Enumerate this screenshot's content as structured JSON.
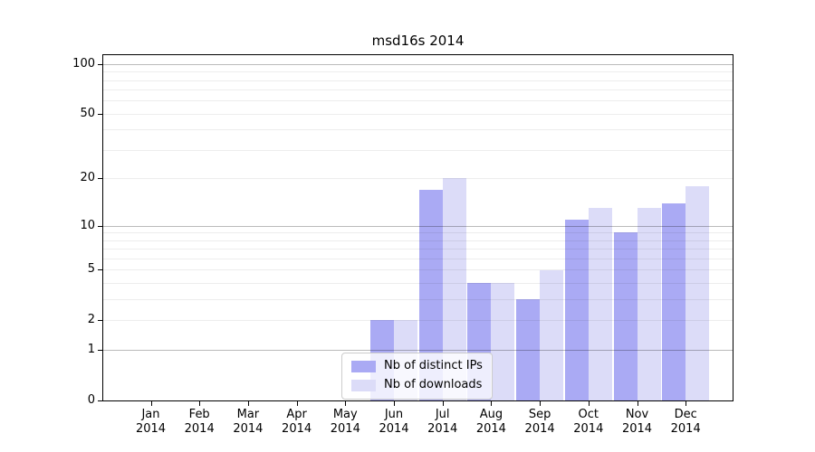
{
  "chart_data": {
    "type": "bar",
    "title": "msd16s 2014",
    "categories": [
      "Jan 2014",
      "Feb 2014",
      "Mar 2014",
      "Apr 2014",
      "May 2014",
      "Jun 2014",
      "Jul 2014",
      "Aug 2014",
      "Sep 2014",
      "Oct 2014",
      "Nov 2014",
      "Dec 2014"
    ],
    "series": [
      {
        "name": "Nb of distinct IPs",
        "color": "#aaaaf4",
        "values": [
          0,
          0,
          0,
          0,
          0,
          2,
          17,
          4,
          3,
          11,
          9,
          14
        ]
      },
      {
        "name": "Nb of downloads",
        "color": "#dcdcf8",
        "values": [
          0,
          0,
          0,
          0,
          0,
          2,
          20,
          4,
          5,
          13,
          13,
          18
        ]
      }
    ],
    "y_scale": "log1p",
    "y_ticks": [
      0,
      1,
      2,
      5,
      10,
      20,
      50,
      100
    ],
    "y_gridlines_major": [
      1,
      10,
      100
    ],
    "y_gridlines_minor": [
      2,
      3,
      4,
      5,
      6,
      7,
      8,
      9,
      20,
      30,
      40,
      50,
      60,
      70,
      80,
      90
    ],
    "ylim": [
      0,
      113
    ],
    "xlabel": "",
    "ylabel": "",
    "grid": "both",
    "legend": {
      "position": "lower-center"
    }
  }
}
